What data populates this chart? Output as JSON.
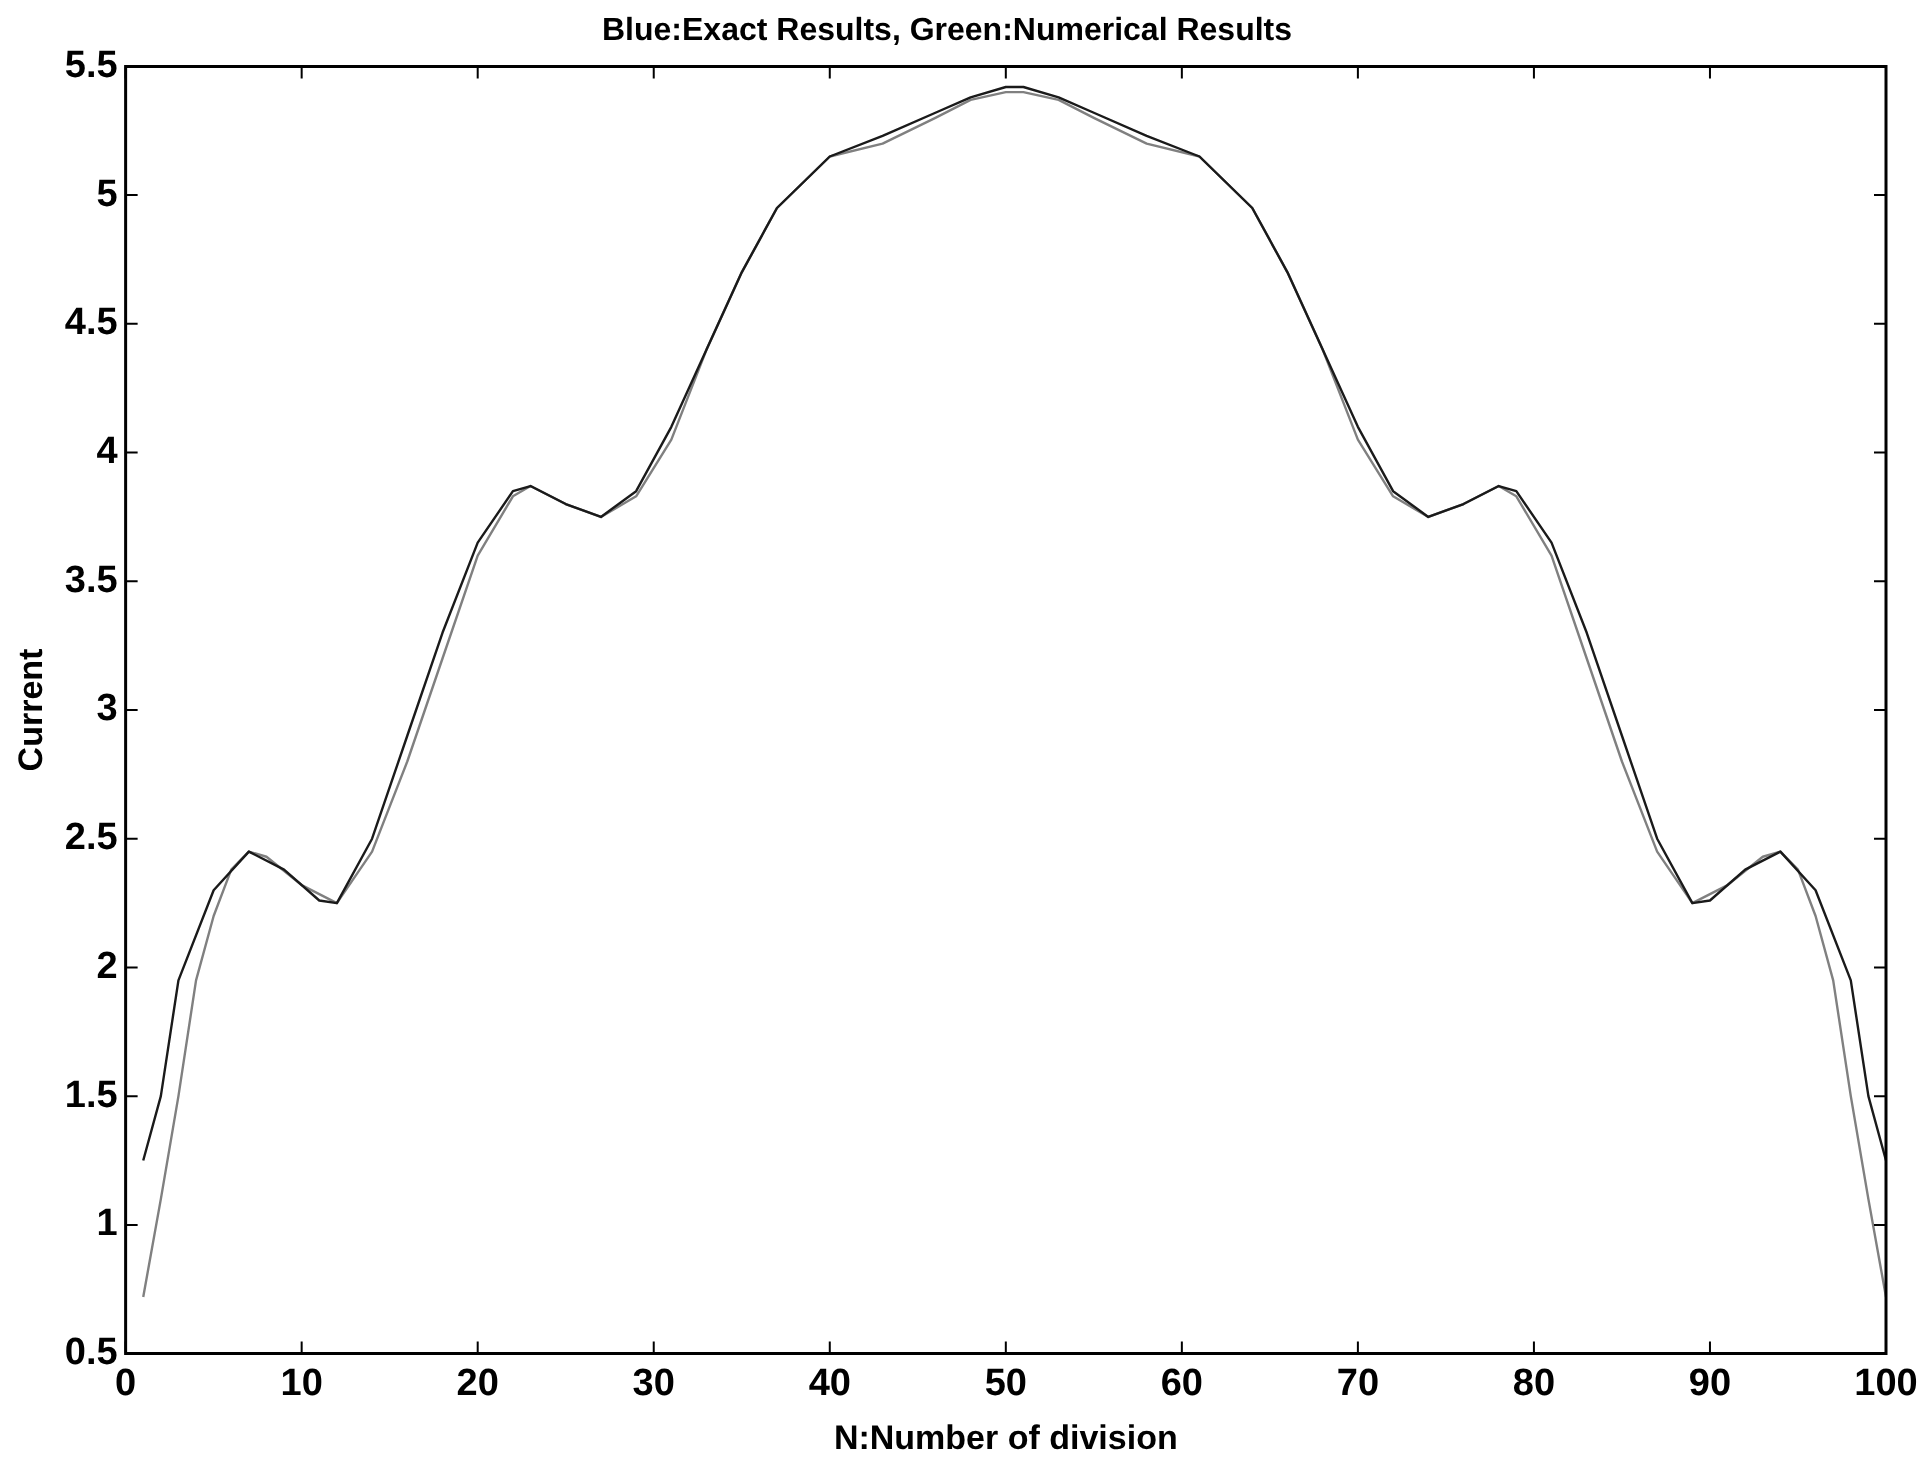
{
  "chart_data": {
    "type": "line",
    "title": "Blue:Exact Results, Green:Numerical Results",
    "xlabel": "N:Number of division",
    "ylabel": "Current",
    "xlim": [
      0,
      100
    ],
    "xticks": [
      0,
      10,
      20,
      30,
      40,
      50,
      60,
      70,
      80,
      90,
      100
    ],
    "ylim": [
      0.5,
      5.5
    ],
    "yticks": [
      0.5,
      1,
      1.5,
      2,
      2.5,
      3,
      3.5,
      4,
      4.5,
      5,
      5.5
    ],
    "grid": false,
    "legend": false,
    "marker": "none",
    "line_style": "solid",
    "series": [
      {
        "color": "#1a1a1a",
        "x": [
          1,
          2,
          3,
          5,
          7,
          9,
          11,
          12,
          14,
          16,
          18,
          20,
          22,
          23,
          25,
          27,
          29,
          31,
          33,
          35,
          37,
          40,
          43,
          46,
          48,
          50,
          51,
          53,
          55,
          58,
          61,
          64,
          66,
          68,
          70,
          72,
          74,
          76,
          78,
          79,
          81,
          83,
          85,
          87,
          89,
          90,
          92,
          94,
          96,
          98,
          99,
          100
        ],
        "values": [
          1.25,
          1.5,
          1.95,
          2.3,
          2.45,
          2.38,
          2.26,
          2.25,
          2.5,
          2.9,
          3.3,
          3.65,
          3.85,
          3.87,
          3.8,
          3.75,
          3.85,
          4.1,
          4.4,
          4.7,
          4.95,
          5.15,
          5.23,
          5.32,
          5.38,
          5.42,
          5.42,
          5.38,
          5.32,
          5.23,
          5.15,
          4.95,
          4.7,
          4.4,
          4.1,
          3.85,
          3.75,
          3.8,
          3.87,
          3.85,
          3.65,
          3.3,
          2.9,
          2.5,
          2.25,
          2.26,
          2.38,
          2.45,
          2.3,
          1.95,
          1.5,
          1.25
        ]
      },
      {
        "color": "#808080",
        "x": [
          1,
          2,
          3,
          4,
          5,
          6,
          7,
          8,
          10,
          12,
          14,
          16,
          18,
          20,
          22,
          23,
          25,
          27,
          29,
          31,
          33,
          35,
          37,
          40,
          43,
          46,
          48,
          50,
          51,
          53,
          55,
          58,
          61,
          64,
          66,
          68,
          70,
          72,
          74,
          76,
          78,
          79,
          81,
          83,
          85,
          87,
          89,
          91,
          93,
          94,
          95,
          96,
          97,
          98,
          99,
          100
        ],
        "values": [
          0.72,
          1.1,
          1.5,
          1.95,
          2.2,
          2.38,
          2.45,
          2.43,
          2.32,
          2.25,
          2.45,
          2.8,
          3.2,
          3.6,
          3.83,
          3.87,
          3.8,
          3.75,
          3.83,
          4.05,
          4.4,
          4.7,
          4.95,
          5.15,
          5.2,
          5.3,
          5.37,
          5.4,
          5.4,
          5.37,
          5.3,
          5.2,
          5.15,
          4.95,
          4.7,
          4.4,
          4.05,
          3.83,
          3.75,
          3.8,
          3.87,
          3.83,
          3.6,
          3.2,
          2.8,
          2.45,
          2.25,
          2.32,
          2.43,
          2.45,
          2.38,
          2.2,
          1.95,
          1.5,
          1.1,
          0.72
        ]
      }
    ]
  }
}
